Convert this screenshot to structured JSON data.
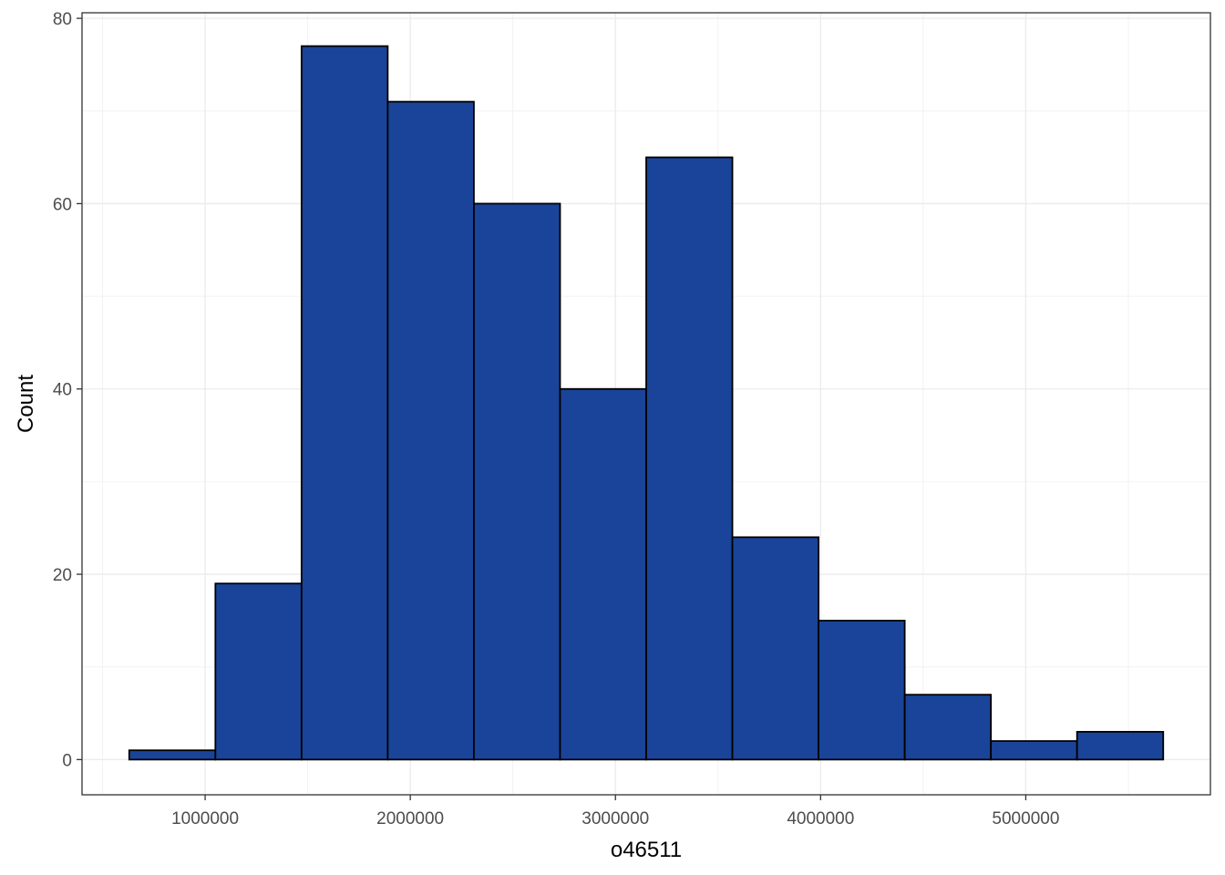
{
  "chart_data": {
    "type": "bar",
    "subtype": "histogram",
    "xlabel": "o46511",
    "ylabel": "Count",
    "xlim": [
      400000,
      5900000
    ],
    "ylim": [
      -3.8,
      80.6
    ],
    "x_ticks": [
      1000000,
      2000000,
      3000000,
      4000000,
      5000000
    ],
    "x_tick_labels": [
      "1000000",
      "2000000",
      "3000000",
      "4000000",
      "5000000"
    ],
    "y_ticks": [
      0,
      20,
      40,
      60,
      80
    ],
    "y_tick_labels": [
      "0",
      "20",
      "40",
      "60",
      "80"
    ],
    "bins": [
      {
        "x0": 630000,
        "x1": 1050000,
        "count": 1
      },
      {
        "x0": 1050000,
        "x1": 1470000,
        "count": 19
      },
      {
        "x0": 1470000,
        "x1": 1890000,
        "count": 77
      },
      {
        "x0": 1890000,
        "x1": 2310000,
        "count": 71
      },
      {
        "x0": 2310000,
        "x1": 2730000,
        "count": 60
      },
      {
        "x0": 2730000,
        "x1": 3150000,
        "count": 40
      },
      {
        "x0": 3150000,
        "x1": 3570000,
        "count": 65
      },
      {
        "x0": 3570000,
        "x1": 3990000,
        "count": 24
      },
      {
        "x0": 3990000,
        "x1": 4410000,
        "count": 15
      },
      {
        "x0": 4410000,
        "x1": 4830000,
        "count": 7
      },
      {
        "x0": 4830000,
        "x1": 5250000,
        "count": 2
      },
      {
        "x0": 5250000,
        "x1": 5670000,
        "count": 3
      }
    ],
    "grid": true,
    "theme": "bw",
    "colors": {
      "fill": "#1a4499",
      "stroke": "#000000",
      "grid": "#ebebeb",
      "panel_border": "#333333"
    }
  }
}
